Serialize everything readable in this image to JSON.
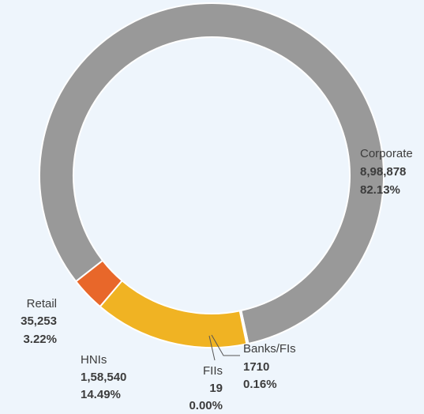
{
  "chart_data": {
    "type": "pie",
    "donut": true,
    "categories": [
      "Corporate",
      "Banks/FIs",
      "FIIs",
      "HNIs",
      "Retail"
    ],
    "values": [
      898878,
      1710,
      19,
      158540,
      35253
    ],
    "value_labels": [
      "8,98,878",
      "1710",
      "19",
      "1,58,540",
      "35,253"
    ],
    "percent_labels": [
      "82.13%",
      "0.16%",
      "0.00%",
      "14.49%",
      "3.22%"
    ],
    "colors": [
      "#999999",
      "#9a9a9a",
      "#9a9a9a",
      "#f0b323",
      "#e8672a"
    ]
  }
}
